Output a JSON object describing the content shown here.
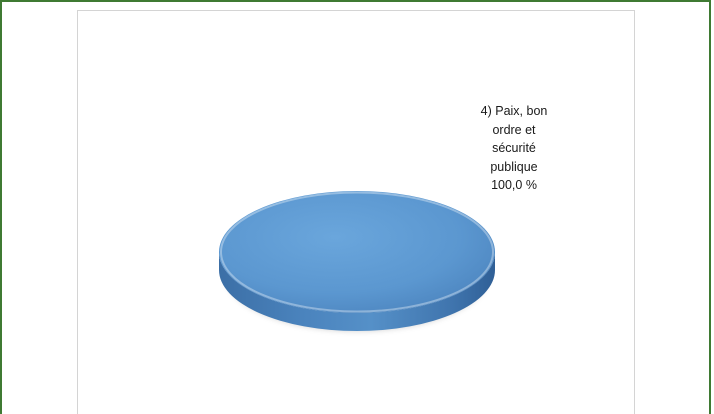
{
  "chart_data": {
    "type": "pie",
    "categories": [
      "4) Paix, bon ordre et sécurité publique"
    ],
    "values": [
      100.0
    ],
    "data_labels": [
      {
        "lines": [
          "4) Paix, bon",
          "ordre et",
          "sécurité",
          "publique",
          "100,0 %"
        ]
      }
    ],
    "colors": [
      "#5b9bd5"
    ],
    "style": "3d",
    "legend": "none"
  }
}
